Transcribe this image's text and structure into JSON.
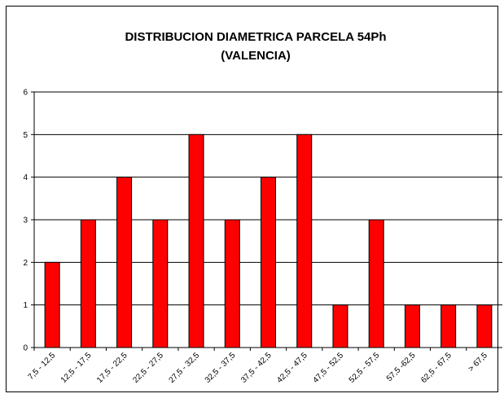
{
  "chart_data": {
    "type": "bar",
    "title": "DISTRIBUCION DIAMETRICA PARCELA 54Ph",
    "subtitle": "(VALENCIA)",
    "categories": [
      "7,5 - 12,5",
      "12,5 - 17,5",
      "17,5 - 22,5",
      "22,5 - 27,5",
      "27,5 - 32,5",
      "32,5 - 37,5",
      "37,5 - 42,5",
      "42,5 - 47,5",
      "47,5 - 52,5",
      "52,5 - 57,5",
      "57,5 -62,5",
      "62,5 - 67,5",
      "> 67,5"
    ],
    "values": [
      2,
      3,
      4,
      3,
      5,
      3,
      4,
      5,
      1,
      3,
      1,
      1,
      1
    ],
    "color": "#ff0000",
    "ylim": [
      0,
      6
    ],
    "yticks": [
      0,
      1,
      2,
      3,
      4,
      5,
      6
    ],
    "grid": true
  }
}
